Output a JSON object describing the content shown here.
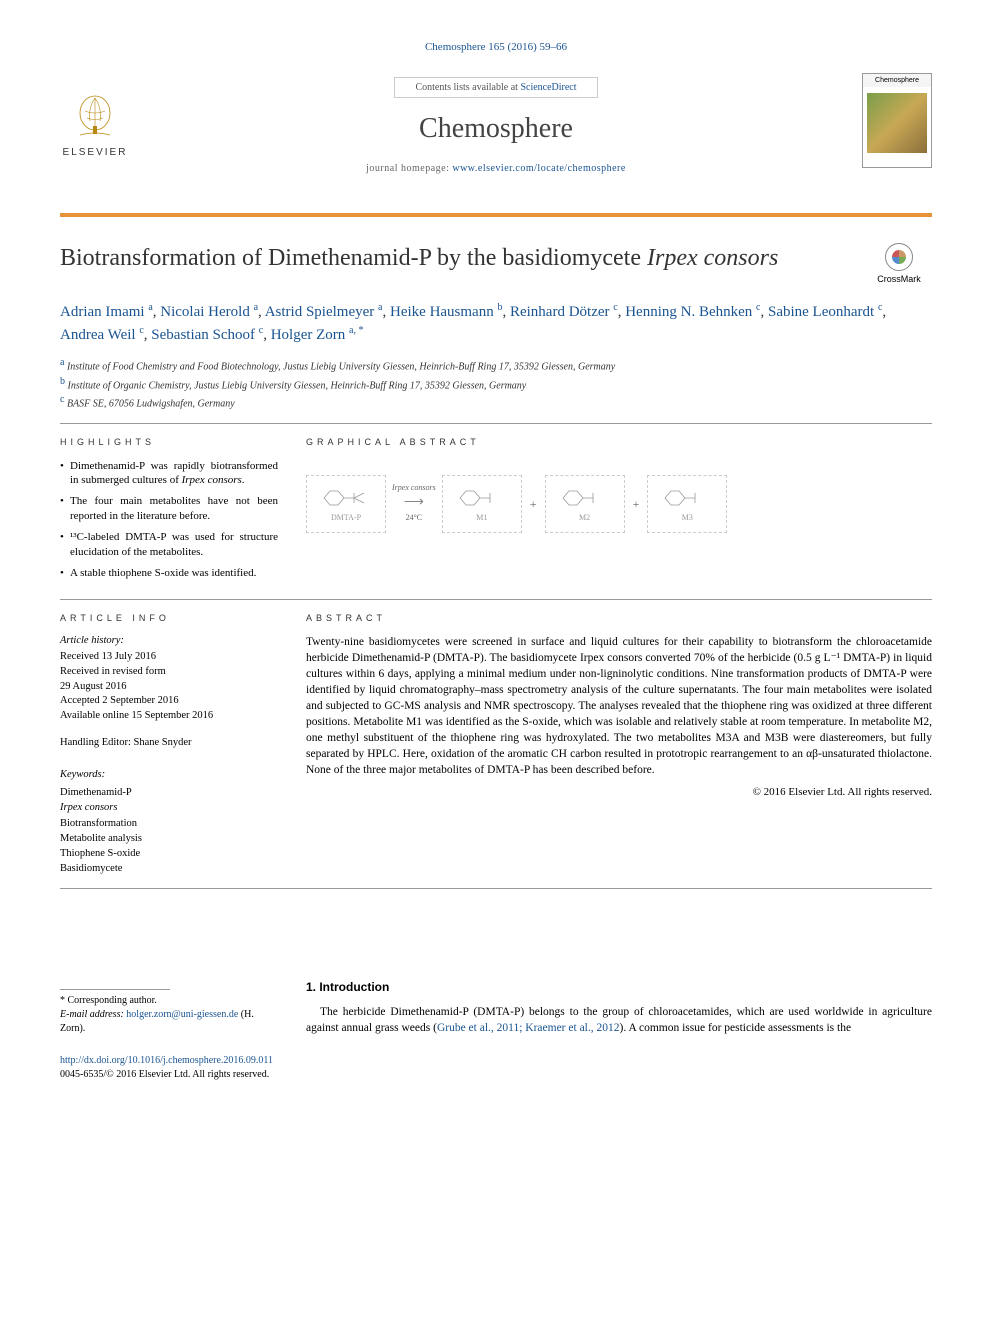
{
  "citation": {
    "journal": "Chemosphere",
    "volref": "165 (2016) 59–66"
  },
  "masthead": {
    "publisher": "ELSEVIER",
    "contents_prefix": "Contents lists available at ",
    "contents_link": "ScienceDirect",
    "journal_title": "Chemosphere",
    "homepage_prefix": "journal homepage: ",
    "homepage_url": "www.elsevier.com/locate/chemosphere",
    "cover_label": "Chemosphere"
  },
  "crossmark": "CrossMark",
  "title": {
    "main": "Biotransformation of Dimethenamid-P by the basidiomycete ",
    "ital": "Irpex consors"
  },
  "authors": [
    {
      "name": "Adrian Imami",
      "aff": "a"
    },
    {
      "name": "Nicolai Herold",
      "aff": "a"
    },
    {
      "name": "Astrid Spielmeyer",
      "aff": "a"
    },
    {
      "name": "Heike Hausmann",
      "aff": "b"
    },
    {
      "name": "Reinhard Dötzer",
      "aff": "c"
    },
    {
      "name": "Henning N. Behnken",
      "aff": "c"
    },
    {
      "name": "Sabine Leonhardt",
      "aff": "c"
    },
    {
      "name": "Andrea Weil",
      "aff": "c"
    },
    {
      "name": "Sebastian Schoof",
      "aff": "c"
    },
    {
      "name": "Holger Zorn",
      "aff": "a, *"
    }
  ],
  "affiliations": [
    {
      "key": "a",
      "text": "Institute of Food Chemistry and Food Biotechnology, Justus Liebig University Giessen, Heinrich-Buff Ring 17, 35392 Giessen, Germany"
    },
    {
      "key": "b",
      "text": "Institute of Organic Chemistry, Justus Liebig University Giessen, Heinrich-Buff Ring 17, 35392 Giessen, Germany"
    },
    {
      "key": "c",
      "text": "BASF SE, 67056 Ludwigshafen, Germany"
    }
  ],
  "highlights_head": "HIGHLIGHTS",
  "highlights": [
    {
      "pre": "Dimethenamid-P was rapidly biotransformed in submerged cultures of ",
      "ital": "Irpex consors",
      "post": "."
    },
    {
      "pre": "The four main metabolites have not been reported in the literature before.",
      "ital": "",
      "post": ""
    },
    {
      "pre": "¹³C-labeled DMTA-P was used for structure elucidation of the metabolites.",
      "ital": "",
      "post": ""
    },
    {
      "pre": "A stable thiophene S-oxide was identified.",
      "ital": "",
      "post": ""
    }
  ],
  "graphical_head": "GRAPHICAL ABSTRACT",
  "graphical": {
    "items": [
      "DMTA-P",
      "M1",
      "M2",
      "M3"
    ],
    "arrow_top": "Irpex consors",
    "arrow_bot": "24°C"
  },
  "artinfo_head": "ARTICLE INFO",
  "artinfo": {
    "history_label": "Article history:",
    "received": "Received 13 July 2016",
    "revised1": "Received in revised form",
    "revised2": "29 August 2016",
    "accepted": "Accepted 2 September 2016",
    "online": "Available online 15 September 2016",
    "editor_label": "Handling Editor: ",
    "editor": "Shane Snyder"
  },
  "keywords_label": "Keywords:",
  "keywords": [
    "Dimethenamid-P",
    "Irpex consors",
    "Biotransformation",
    "Metabolite analysis",
    "Thiophene S-oxide",
    "Basidiomycete"
  ],
  "abstract_head": "ABSTRACT",
  "abstract": "Twenty-nine basidiomycetes were screened in surface and liquid cultures for their capability to biotransform the chloroacetamide herbicide Dimethenamid-P (DMTA-P). The basidiomycete Irpex consors converted 70% of the herbicide (0.5 g L⁻¹ DMTA-P) in liquid cultures within 6 days, applying a minimal medium under non-ligninolytic conditions. Nine transformation products of DMTA-P were identified by liquid chromatography–mass spectrometry analysis of the culture supernatants. The four main metabolites were isolated and subjected to GC-MS analysis and NMR spectroscopy. The analyses revealed that the thiophene ring was oxidized at three different positions. Metabolite M1 was identified as the S-oxide, which was isolable and relatively stable at room temperature. In metabolite M2, one methyl substituent of the thiophene ring was hydroxylated. The two metabolites M3A and M3B were diastereomers, but fully separated by HPLC. Here, oxidation of the aromatic CH carbon resulted in prototropic rearrangement to an αβ-unsaturated thiolactone. None of the three major metabolites of DMTA-P has been described before.",
  "copyright": "© 2016 Elsevier Ltd. All rights reserved.",
  "intro_head": "1.  Introduction",
  "intro_text_pre": "The herbicide Dimethenamid-P (DMTA-P) belongs to the group of chloroacetamides, which are used worldwide in agriculture against annual grass weeds (",
  "intro_ref": "Grube et al., 2011; Kraemer et al., 2012",
  "intro_text_post": "). A common issue for pesticide assessments is the",
  "corr_label": "* Corresponding author.",
  "email_label": "E-mail address: ",
  "email": "holger.zorn@uni-giessen.de",
  "email_who": " (H. Zorn).",
  "doi_url": "http://dx.doi.org/10.1016/j.chemosphere.2016.09.011",
  "issn_line": "0045-6535/© 2016 Elsevier Ltd. All rights reserved."
}
